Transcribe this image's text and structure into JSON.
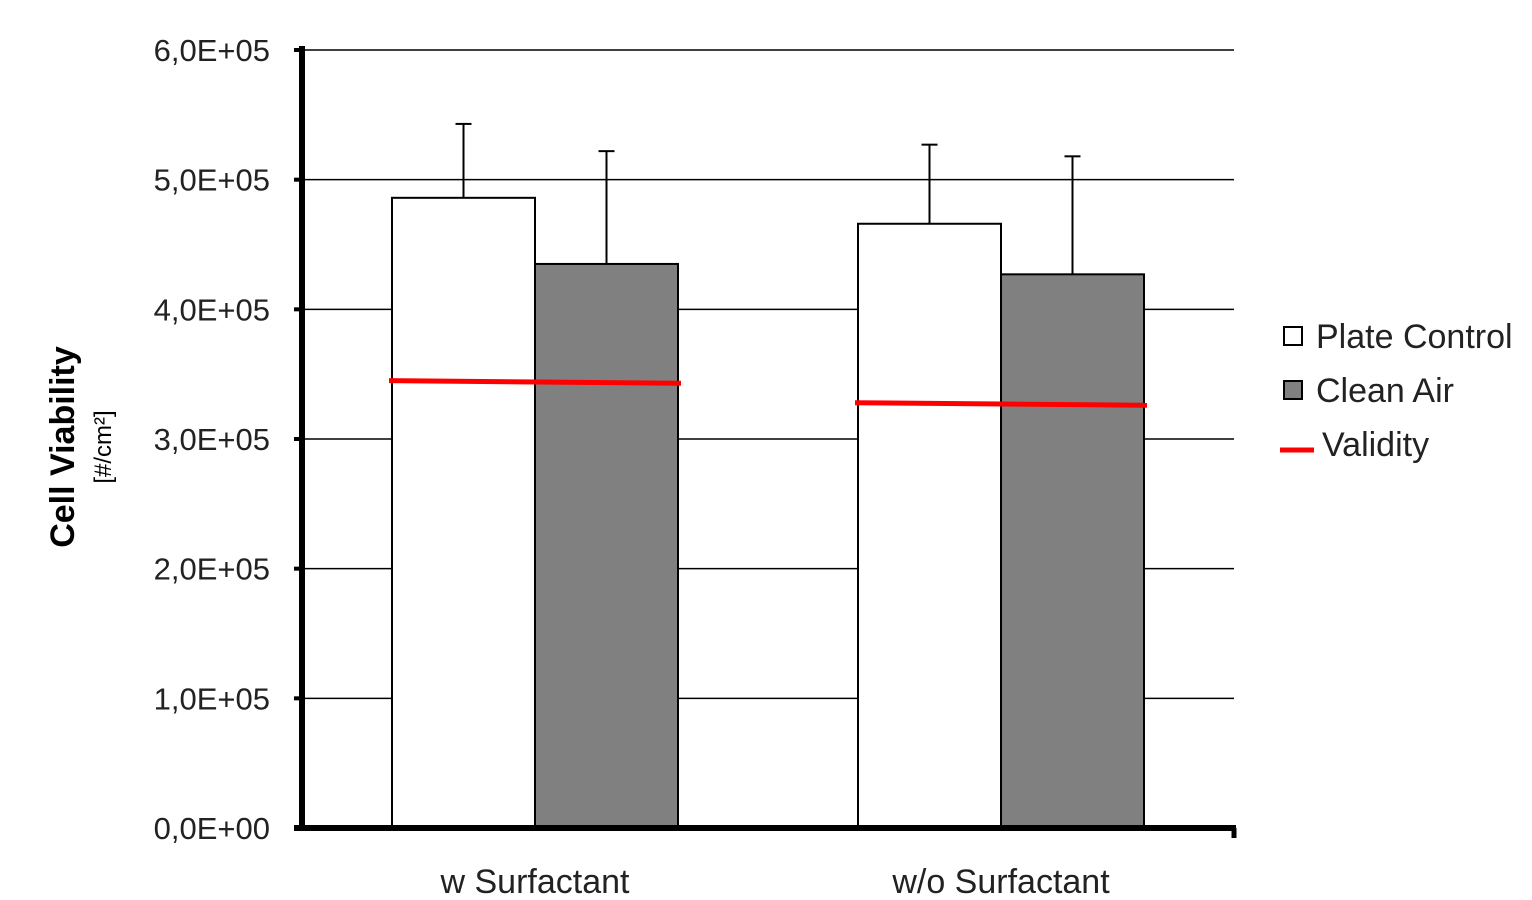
{
  "chart_data": {
    "type": "bar",
    "categories": [
      "w Surfactant",
      "w/o Surfactant"
    ],
    "series": [
      {
        "name": "Plate Control",
        "values": [
          486000,
          466000
        ],
        "error_plus": [
          57000,
          61000
        ],
        "color": "#ffffff"
      },
      {
        "name": "Clean Air",
        "values": [
          435000,
          427000
        ],
        "error_plus": [
          87000,
          91000
        ],
        "color": "#808080"
      }
    ],
    "validity": {
      "name": "Validity",
      "values": [
        [
          345000,
          343000
        ],
        [
          328000,
          326000
        ]
      ],
      "color": "#ff0000"
    },
    "ylabel": "Cell Viability",
    "ylabel_unit": "[#/cm²]",
    "yticks": [
      "0,0E+00",
      "1,0E+05",
      "2,0E+05",
      "3,0E+05",
      "4,0E+05",
      "5,0E+05",
      "6,0E+05"
    ],
    "ylim": [
      0,
      600000
    ],
    "grid": true,
    "legend_position": "right"
  }
}
